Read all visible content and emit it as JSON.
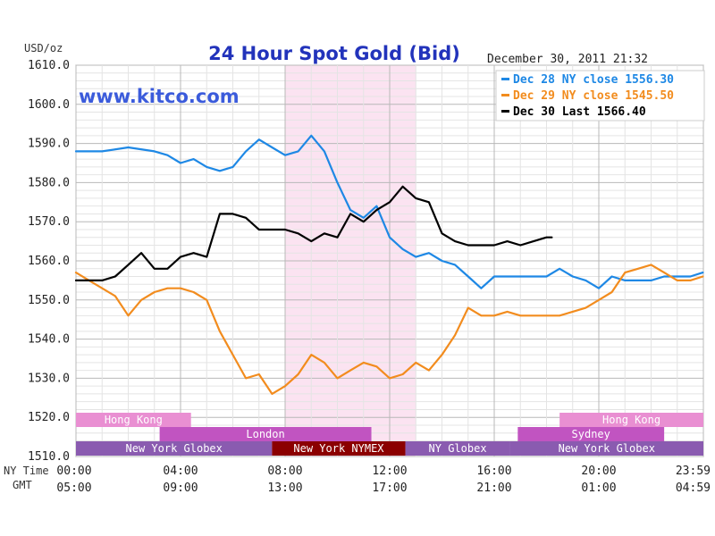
{
  "header": {
    "unit_label": "USD/oz",
    "title": "24 Hour Spot Gold (Bid)",
    "timestamp": "December 30, 2011 21:32",
    "watermark": "www.kitco.com"
  },
  "axis_labels": {
    "ny_time": "NY Time",
    "gmt": "GMT"
  },
  "colors": {
    "dec28": "#1e88e5",
    "dec29": "#f28c1e",
    "dec30": "#000000",
    "highlight": "#fbe3f1",
    "grid": "#c8c8c8",
    "title": "#2233bb",
    "watermark": "#3b5bdb",
    "session_pink": "#e98fd2",
    "session_purple": "#c154c1",
    "session_violet": "#8a5bb0",
    "session_dark": "#8b0000"
  },
  "sessions": [
    {
      "label": "Hong Kong",
      "row": 0,
      "start": 0,
      "end": 4.4,
      "color": "#e98fd2"
    },
    {
      "label": "Hong Kong",
      "row": 0,
      "start": 18.5,
      "end": 24,
      "color": "#e98fd2"
    },
    {
      "label": "London",
      "row": 1,
      "start": 3.2,
      "end": 11.3,
      "color": "#c154c1"
    },
    {
      "label": "Sydney",
      "row": 1,
      "start": 16.9,
      "end": 22.5,
      "color": "#c154c1"
    },
    {
      "label": "New York Globex",
      "row": 2,
      "start": 0,
      "end": 7.5,
      "color": "#8a5bb0"
    },
    {
      "label": "New York NYMEX",
      "row": 2,
      "start": 7.5,
      "end": 12.6,
      "color": "#8b0000"
    },
    {
      "label": "NY Globex",
      "row": 2,
      "start": 12.6,
      "end": 16.6,
      "color": "#8a5bb0"
    },
    {
      "label": "New York Globex",
      "row": 2,
      "start": 16.6,
      "end": 24,
      "color": "#8a5bb0"
    }
  ],
  "chart_data": {
    "type": "line",
    "title": "24 Hour Spot Gold (Bid)",
    "ylabel": "USD/oz",
    "ylim": [
      1510,
      1610
    ],
    "yticks": [
      "1510.0",
      "1520.0",
      "1530.0",
      "1540.0",
      "1550.0",
      "1560.0",
      "1570.0",
      "1580.0",
      "1590.0",
      "1600.0",
      "1610.0"
    ],
    "xlim": [
      0,
      24
    ],
    "xticks_ny": [
      "00:00",
      "04:00",
      "08:00",
      "12:00",
      "16:00",
      "20:00",
      "23:59"
    ],
    "xticks_gmt": [
      "05:00",
      "09:00",
      "13:00",
      "17:00",
      "21:00",
      "01:00",
      "04:59"
    ],
    "highlight_range": [
      8,
      13
    ],
    "grid": true,
    "legend_position": "top-right",
    "series": [
      {
        "name": "Dec 28 NY close 1556.30",
        "key": "dec28",
        "x": [
          0,
          1,
          2,
          3,
          3.5,
          4,
          4.5,
          5,
          5.5,
          6,
          6.5,
          7,
          7.5,
          8,
          8.5,
          9,
          9.5,
          10,
          10.5,
          11,
          11.5,
          12,
          12.5,
          13,
          13.5,
          14,
          14.5,
          15,
          15.5,
          16,
          16.5,
          17,
          17.5,
          18,
          18.5,
          19,
          19.5,
          20,
          20.5,
          21,
          21.5,
          22,
          22.5,
          23,
          23.5,
          23.98
        ],
        "values": [
          1588,
          1588,
          1589,
          1588,
          1587,
          1585,
          1586,
          1584,
          1583,
          1584,
          1588,
          1591,
          1589,
          1587,
          1588,
          1592,
          1588,
          1580,
          1573,
          1571,
          1574,
          1566,
          1563,
          1561,
          1562,
          1560,
          1559,
          1556,
          1553,
          1556,
          1556,
          1556,
          1556,
          1556,
          1558,
          1556,
          1555,
          1553,
          1556,
          1555,
          1555,
          1555,
          1556,
          1556,
          1556,
          1557
        ]
      },
      {
        "name": "Dec 29 NY close 1545.50",
        "key": "dec29",
        "x": [
          0,
          0.5,
          1,
          1.5,
          2,
          2.5,
          3,
          3.5,
          4,
          4.5,
          5,
          5.5,
          6,
          6.5,
          7,
          7.5,
          8,
          8.5,
          9,
          9.5,
          10,
          10.5,
          11,
          11.5,
          12,
          12.5,
          13,
          13.5,
          14,
          14.5,
          15,
          15.5,
          16,
          16.5,
          17,
          17.5,
          18,
          18.5,
          19,
          19.5,
          20,
          20.5,
          21,
          21.5,
          22,
          22.5,
          23,
          23.5,
          23.98
        ],
        "values": [
          1557,
          1555,
          1553,
          1551,
          1546,
          1550,
          1552,
          1553,
          1553,
          1552,
          1550,
          1542,
          1536,
          1530,
          1531,
          1526,
          1528,
          1531,
          1536,
          1534,
          1530,
          1532,
          1534,
          1533,
          1530,
          1531,
          1534,
          1532,
          1536,
          1541,
          1548,
          1546,
          1546,
          1547,
          1546,
          1546,
          1546,
          1546,
          1547,
          1548,
          1550,
          1552,
          1557,
          1558,
          1559,
          1557,
          1555,
          1555,
          1556
        ]
      },
      {
        "name": "Dec 30 Last 1566.40",
        "key": "dec30",
        "x": [
          0,
          0.5,
          1,
          1.5,
          2,
          2.5,
          3,
          3.5,
          4,
          4.5,
          5,
          5.5,
          6,
          6.5,
          7,
          7.5,
          8,
          8.5,
          9,
          9.5,
          10,
          10.5,
          11,
          11.5,
          12,
          12.5,
          13,
          13.5,
          14,
          14.5,
          15,
          15.5,
          16,
          16.5,
          17,
          17.5,
          18,
          18.2
        ],
        "values": [
          1555,
          1555,
          1555,
          1556,
          1559,
          1562,
          1558,
          1558,
          1561,
          1562,
          1561,
          1572,
          1572,
          1571,
          1568,
          1568,
          1568,
          1567,
          1565,
          1567,
          1566,
          1572,
          1570,
          1573,
          1575,
          1579,
          1576,
          1575,
          1567,
          1565,
          1564,
          1564,
          1564,
          1565,
          1564,
          1565,
          1566,
          1566
        ]
      }
    ]
  }
}
